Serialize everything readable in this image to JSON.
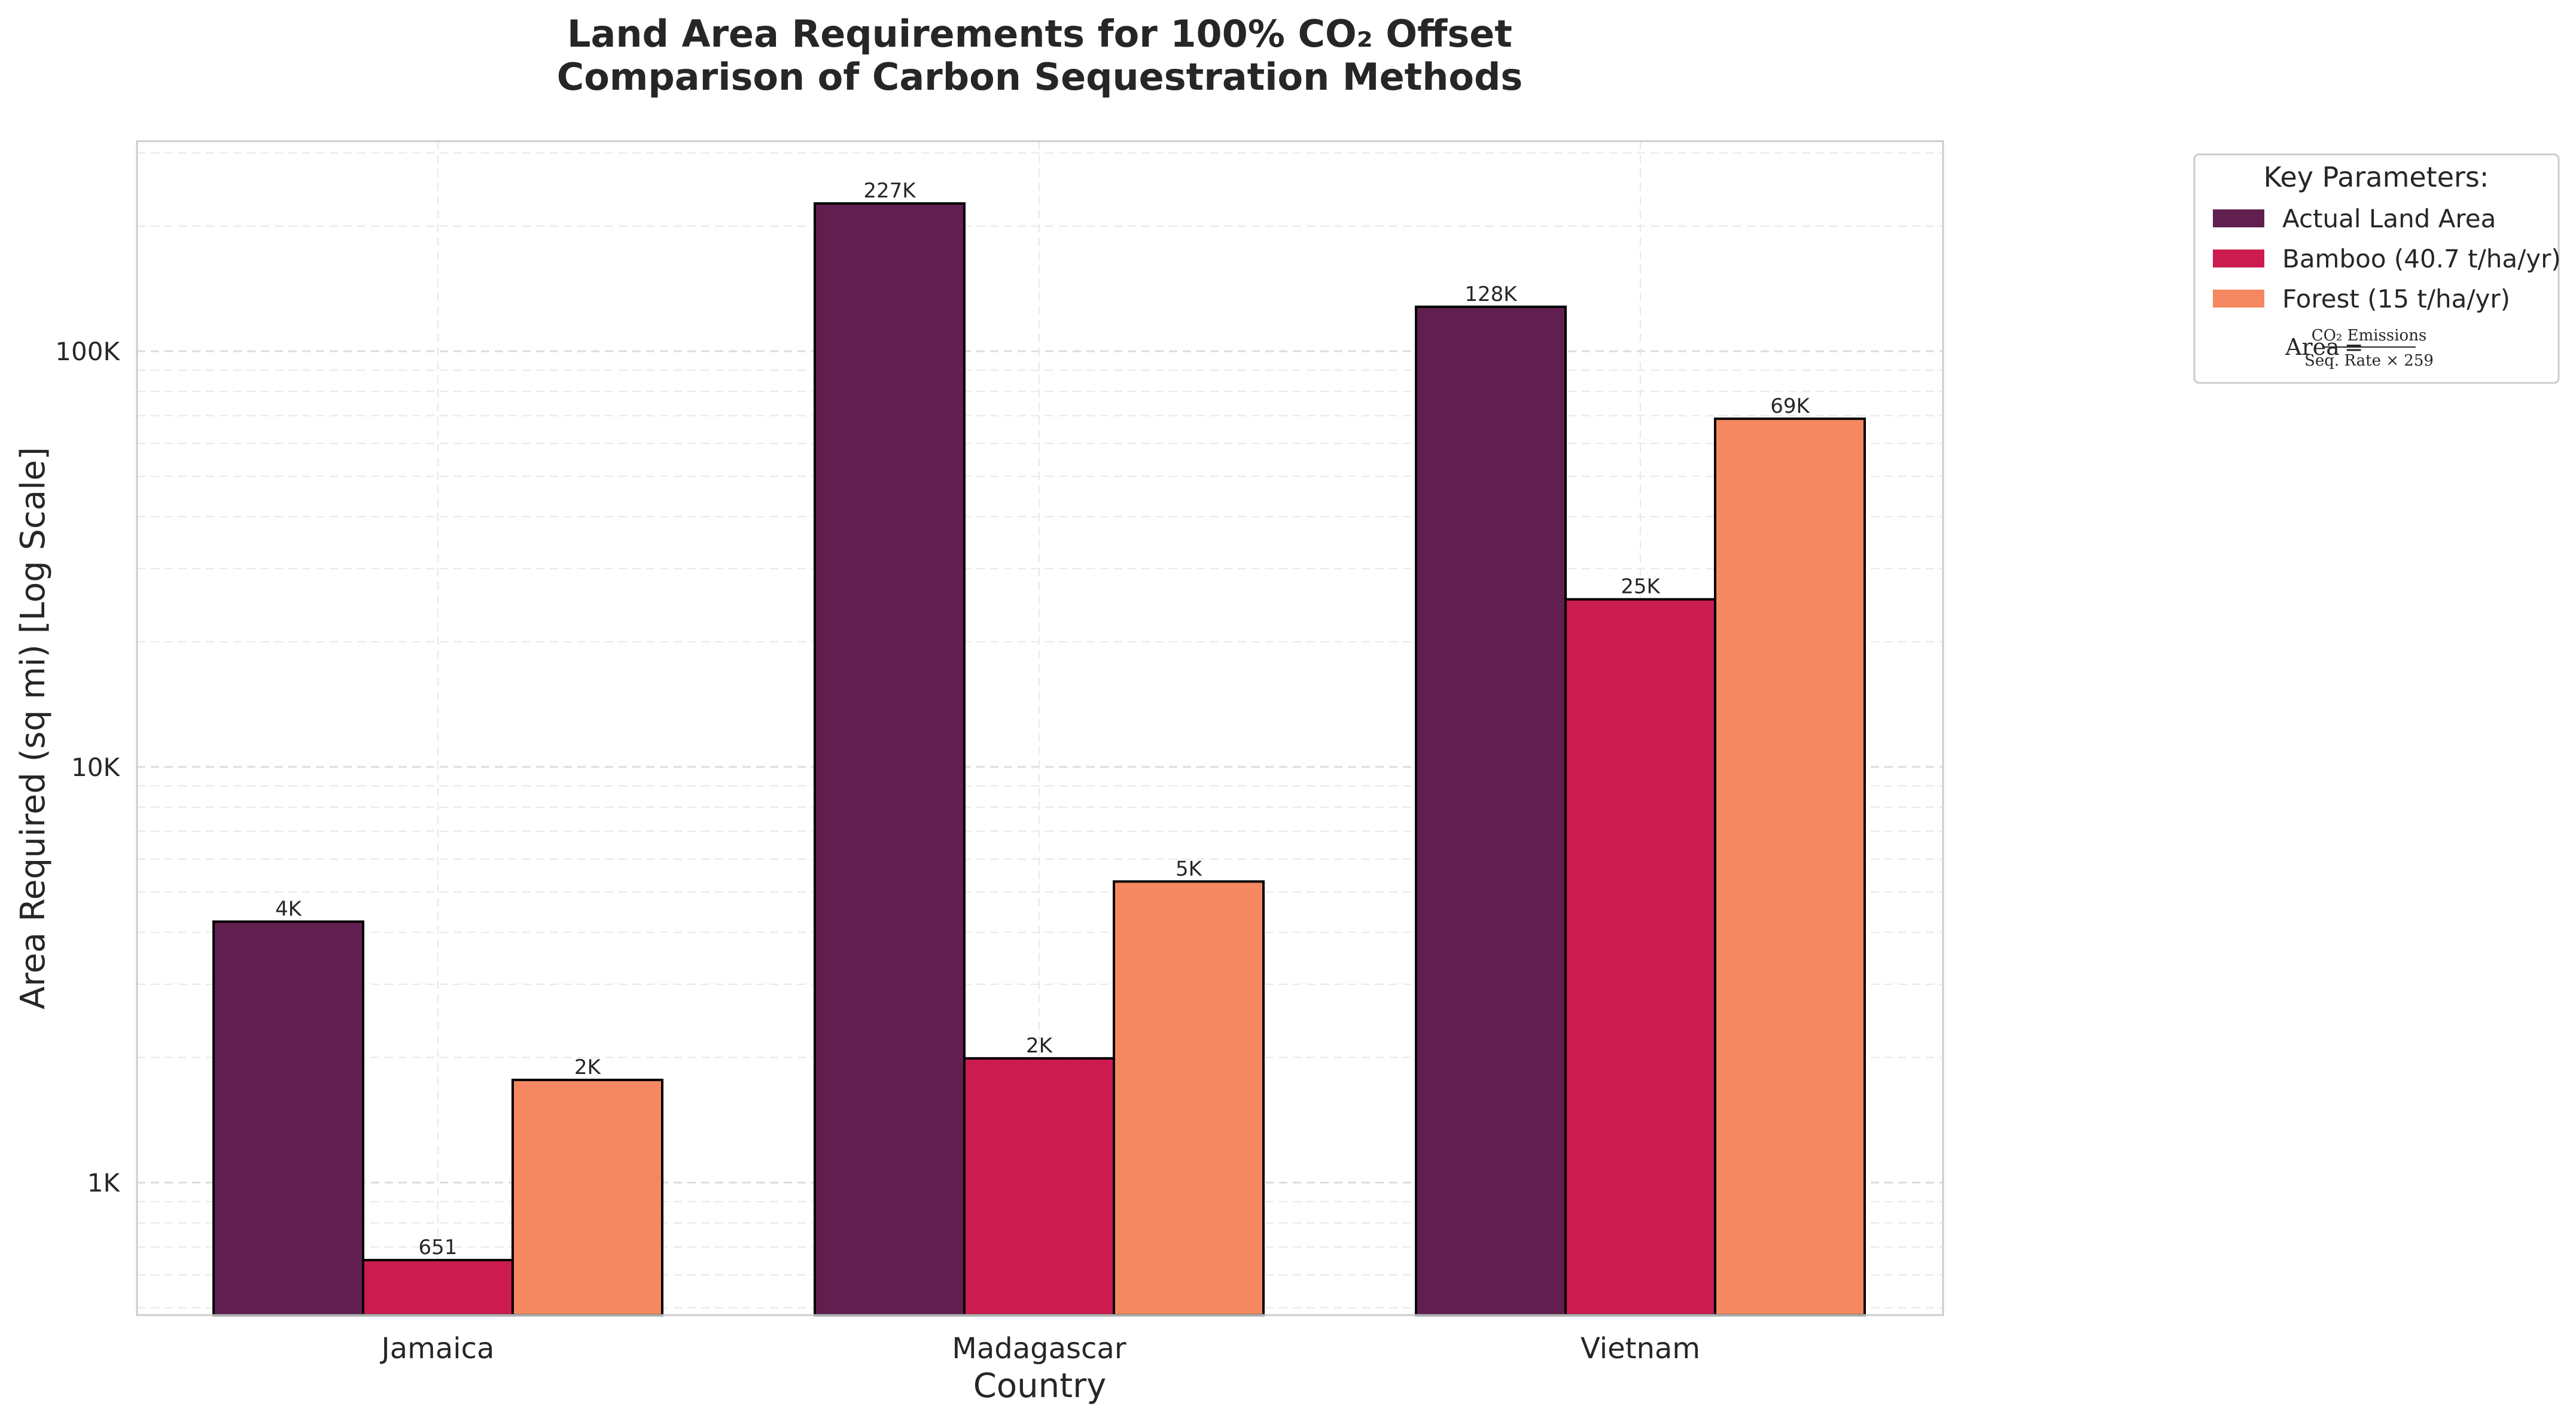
{
  "chart_data": {
    "type": "bar",
    "title": "Land Area Requirements for 100% CO₂ Offset",
    "subtitle": "Comparison of Carbon Sequestration Methods",
    "xlabel": "Country",
    "ylabel": "Area Required (sq mi) [Log Scale]",
    "yscale": "log",
    "ylim": [
      480,
      320000
    ],
    "y_ticks": [
      {
        "value": 1000,
        "label": "1K"
      },
      {
        "value": 10000,
        "label": "10K"
      },
      {
        "value": 100000,
        "label": "100K"
      }
    ],
    "grid": true,
    "categories": [
      "Jamaica",
      "Madagascar",
      "Vietnam"
    ],
    "series": [
      {
        "name": "Actual Land Area",
        "color": "#611f4f",
        "values": [
          4244,
          226658,
          127882
        ],
        "labels": [
          "4K",
          "227K",
          "128K"
        ]
      },
      {
        "name": "Bamboo (40.7 t/ha/yr)",
        "color": "#cb1b4f",
        "values": [
          651,
          1990,
          25300
        ],
        "labels": [
          "651",
          "2K",
          "25K"
        ]
      },
      {
        "name": "Forest (15 t/ha/yr)",
        "color": "#f58860",
        "values": [
          1766,
          5300,
          68800
        ],
        "labels": [
          "2K",
          "5K",
          "69K"
        ]
      }
    ],
    "legend": {
      "title": "Key Parameters:",
      "placement": "outside-top-right",
      "formula": {
        "lhs": "Area",
        "numerator": "CO₂ Emissions",
        "denominator": "Seq. Rate × 259"
      }
    }
  }
}
